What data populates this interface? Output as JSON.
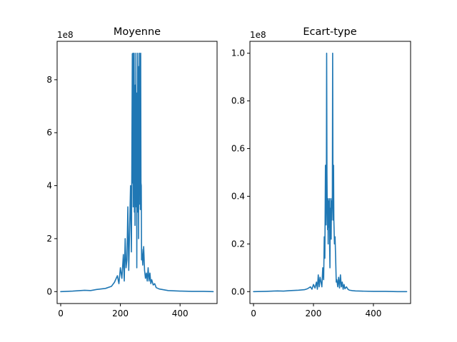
{
  "chart_data": [
    {
      "type": "line",
      "title": "Moyenne",
      "xlabel": "",
      "ylabel": "",
      "y_offset_label": "1e8",
      "xlim": [
        -12,
        524
      ],
      "ylim": [
        -0.45,
        9.45
      ],
      "x_ticks": [
        0,
        200,
        400
      ],
      "x_tick_labels": [
        "0",
        "200",
        "400"
      ],
      "y_ticks": [
        0,
        2,
        4,
        6,
        8
      ],
      "y_tick_labels": [
        "0",
        "2",
        "4",
        "6",
        "8"
      ],
      "grid": false,
      "color": "#1f77b4",
      "series": [
        {
          "x": [
            0,
            40,
            80,
            100,
            120,
            150,
            170,
            180,
            190,
            195,
            200,
            205,
            210,
            213,
            216,
            219,
            222,
            225,
            228,
            231,
            234,
            237,
            240,
            241,
            242,
            243,
            244,
            245,
            246,
            247,
            248,
            249,
            250,
            251,
            252,
            253,
            254,
            255,
            256,
            257,
            258,
            259,
            260,
            261,
            262,
            263,
            264,
            265,
            266,
            267,
            268,
            269,
            270,
            271,
            272,
            275,
            278,
            281,
            284,
            287,
            290,
            293,
            296,
            299,
            302,
            305,
            310,
            315,
            320,
            330,
            340,
            360,
            400,
            440,
            480,
            511
          ],
          "y": [
            0,
            0.02,
            0.05,
            0.04,
            0.08,
            0.12,
            0.2,
            0.35,
            0.6,
            0.3,
            0.9,
            0.5,
            1.4,
            0.4,
            2.0,
            0.9,
            1.2,
            3.2,
            0.8,
            2.4,
            4.0,
            1.5,
            8.98,
            4.1,
            9.0,
            3.2,
            8.8,
            4.3,
            9.0,
            3.0,
            6.5,
            2.5,
            7.8,
            4.0,
            9.0,
            3.2,
            7.0,
            0.9,
            7.5,
            3.0,
            9.0,
            4.1,
            6.0,
            2.0,
            8.5,
            3.3,
            9.0,
            4.2,
            8.9,
            3.1,
            9.0,
            4.1,
            4.0,
            1.2,
            1.6,
            1.0,
            1.7,
            0.8,
            0.5,
            0.7,
            0.4,
            0.9,
            0.4,
            0.7,
            0.3,
            0.45,
            0.25,
            0.3,
            0.15,
            0.1,
            0.08,
            0.04,
            0.02,
            0.01,
            0.01,
            0
          ]
        }
      ]
    },
    {
      "type": "line",
      "title": "Ecart-type",
      "xlabel": "",
      "ylabel": "",
      "y_offset_label": "1e8",
      "xlim": [
        -12,
        524
      ],
      "ylim": [
        -0.05,
        1.05
      ],
      "x_ticks": [
        0,
        200,
        400
      ],
      "x_tick_labels": [
        "0",
        "200",
        "400"
      ],
      "y_ticks": [
        0.0,
        0.2,
        0.4,
        0.6,
        0.8,
        1.0
      ],
      "y_tick_labels": [
        "0.0",
        "0.2",
        "0.4",
        "0.6",
        "0.8",
        "1.0"
      ],
      "grid": false,
      "color": "#1f77b4",
      "series": [
        {
          "x": [
            0,
            40,
            80,
            100,
            120,
            150,
            170,
            180,
            190,
            195,
            200,
            205,
            210,
            213,
            216,
            219,
            222,
            225,
            228,
            231,
            234,
            236,
            238,
            240,
            242,
            243,
            244,
            245,
            246,
            247,
            248,
            249,
            250,
            251,
            252,
            253,
            254,
            255,
            256,
            257,
            258,
            259,
            260,
            261,
            262,
            263,
            264,
            265,
            266,
            267,
            268,
            270,
            272,
            274,
            276,
            278,
            281,
            284,
            287,
            290,
            293,
            296,
            299,
            302,
            305,
            310,
            315,
            320,
            330,
            340,
            360,
            400,
            440,
            480,
            511
          ],
          "y": [
            0,
            0.001,
            0.003,
            0.002,
            0.004,
            0.006,
            0.008,
            0.012,
            0.02,
            0.01,
            0.03,
            0.015,
            0.04,
            0.01,
            0.07,
            0.02,
            0.06,
            0.04,
            0.02,
            0.1,
            0.05,
            0.23,
            0.14,
            0.53,
            0.28,
            0.4,
            1.0,
            0.5,
            0.35,
            0.26,
            0.39,
            0.2,
            0.38,
            0.27,
            0.32,
            0.39,
            0.18,
            0.1,
            0.35,
            0.26,
            0.39,
            0.22,
            0.38,
            0.3,
            0.36,
            0.4,
            1.0,
            0.45,
            0.3,
            0.53,
            0.3,
            0.2,
            0.23,
            0.14,
            0.04,
            0.05,
            0.02,
            0.06,
            0.015,
            0.07,
            0.02,
            0.04,
            0.01,
            0.03,
            0.012,
            0.02,
            0.01,
            0.006,
            0.004,
            0.003,
            0.002,
            0.001,
            0.001,
            0.0,
            0.0
          ]
        }
      ]
    }
  ]
}
